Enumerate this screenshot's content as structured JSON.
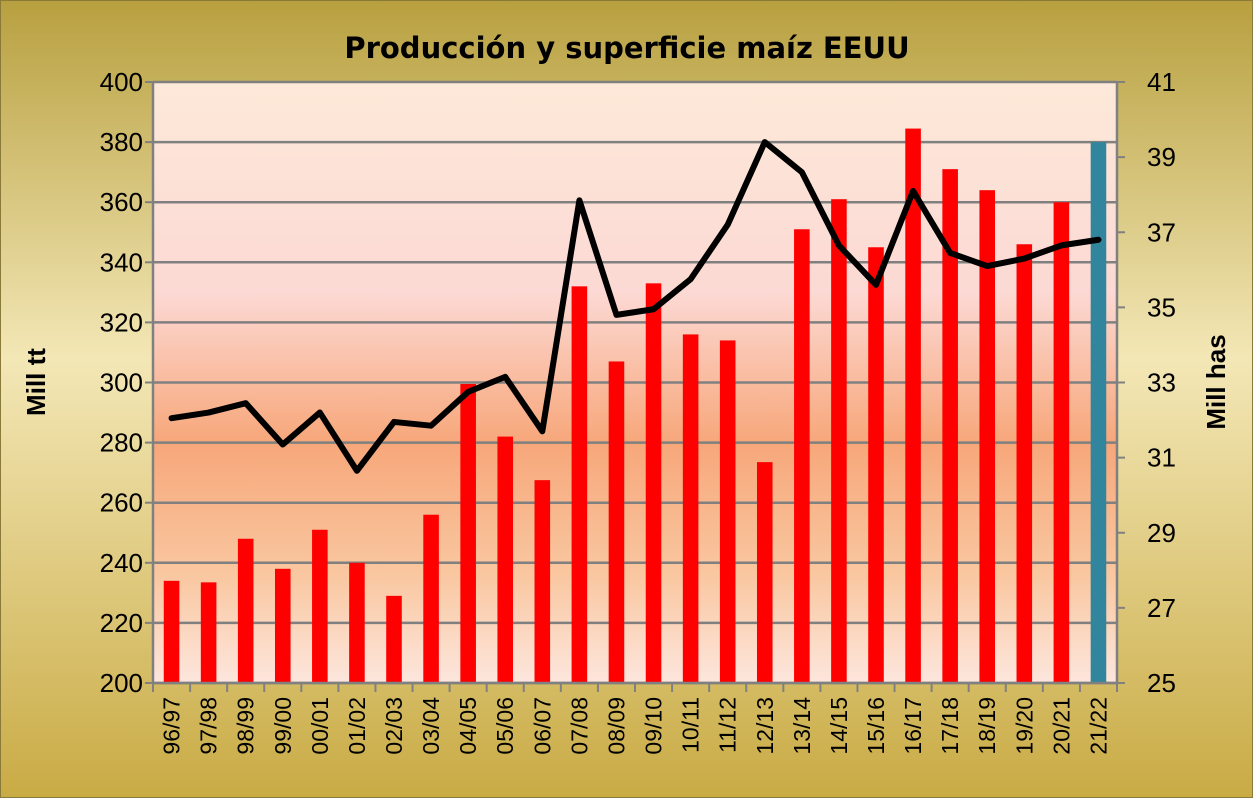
{
  "chart_data": {
    "type": "bar+line",
    "title": "Producción y superficie maíz EEUU",
    "ylabel_left": "Mill tt",
    "ylabel_right": "Mill has",
    "ylim_left": [
      200,
      400
    ],
    "yticks_left": [
      200,
      220,
      240,
      260,
      280,
      300,
      320,
      340,
      360,
      380,
      400
    ],
    "ylim_right": [
      25,
      41
    ],
    "yticks_right": [
      25,
      27,
      29,
      31,
      33,
      35,
      37,
      39,
      41
    ],
    "grid": true,
    "legend": "none",
    "categories": [
      "96/97",
      "97/98",
      "98/99",
      "99/00",
      "00/01",
      "01/02",
      "02/03",
      "03/04",
      "04/05",
      "05/06",
      "06/07",
      "07/08",
      "08/09",
      "09/10",
      "10/11",
      "11/12",
      "12/13",
      "13/14",
      "14/15",
      "15/16",
      "16/17",
      "17/18",
      "18/19",
      "19/20",
      "20/21",
      "21/22"
    ],
    "series": [
      {
        "type": "bar",
        "axis": "left",
        "values": [
          234,
          233.5,
          248,
          238,
          251,
          240,
          229,
          256,
          299.5,
          282,
          267.5,
          332,
          307,
          333,
          316,
          314,
          273.5,
          351,
          361,
          345,
          384.5,
          371,
          364,
          346,
          360,
          380
        ],
        "color": "#ff0000",
        "highlight_last_color": "#31859c"
      },
      {
        "type": "line",
        "axis": "right",
        "values": [
          32.05,
          32.2,
          32.45,
          31.35,
          32.2,
          30.65,
          31.95,
          31.85,
          32.75,
          33.15,
          31.7,
          37.85,
          34.8,
          34.95,
          35.75,
          37.2,
          39.4,
          38.6,
          36.65,
          35.6,
          38.1,
          36.45,
          36.1,
          36.3,
          36.65,
          36.8
        ],
        "color": "#000000"
      }
    ]
  }
}
